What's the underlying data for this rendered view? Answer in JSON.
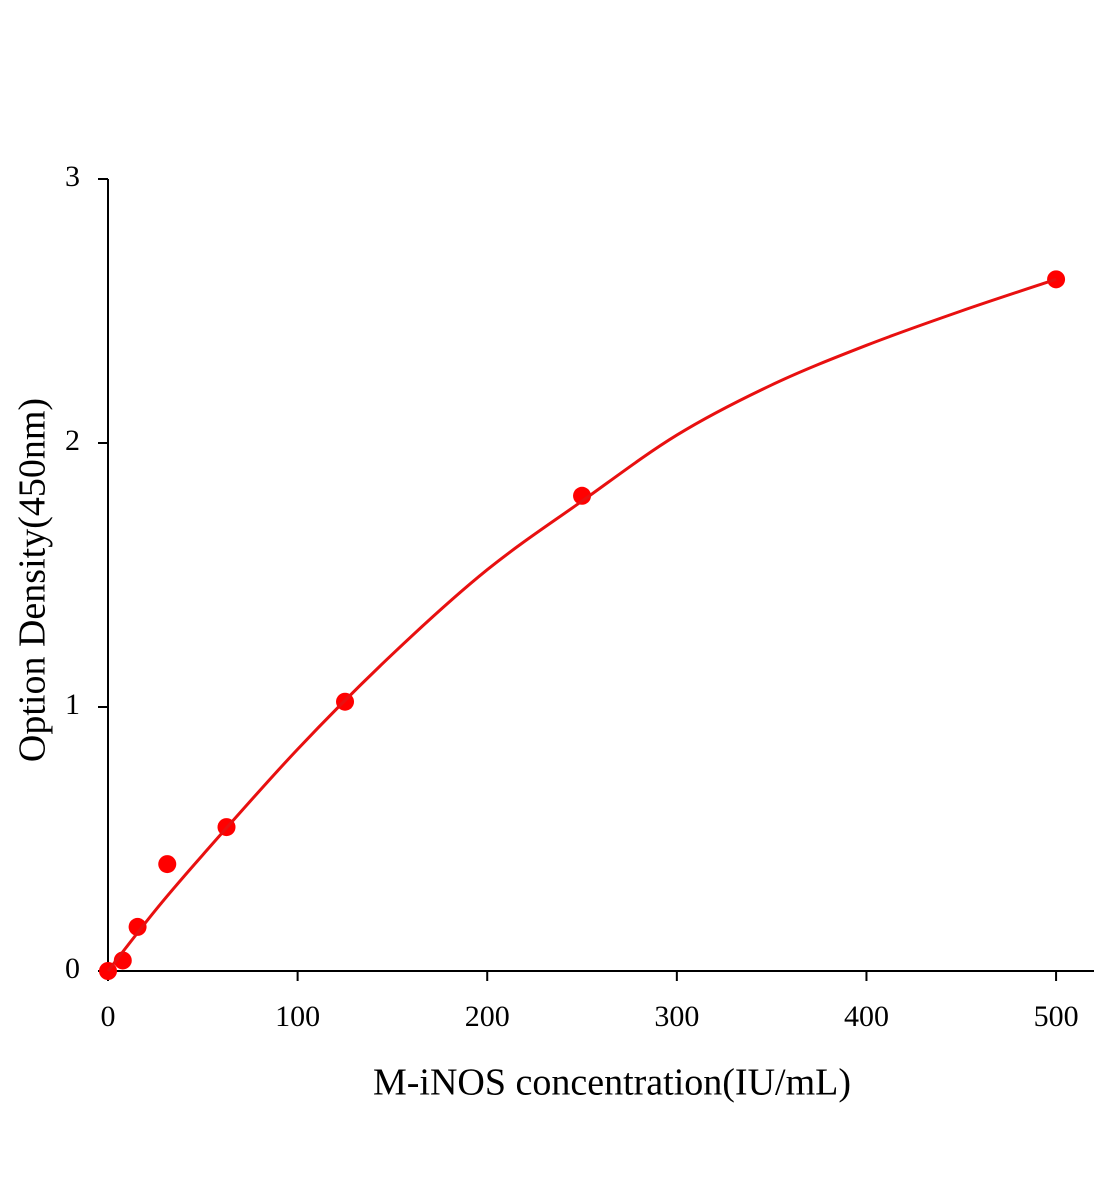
{
  "chart_data": {
    "type": "scatter",
    "x_label": "M-iNOS concentration(IU/mL)",
    "y_label": "Option Density(450nm)",
    "xlim": [
      0,
      520
    ],
    "ylim": [
      0,
      3
    ],
    "xticks": [
      0,
      100,
      200,
      300,
      400,
      500
    ],
    "yticks": [
      0,
      1,
      2,
      3
    ],
    "grid": false,
    "series": [
      {
        "type": "scatter",
        "color": "#ff0000",
        "x": [
          0,
          7.8,
          15.6,
          31.25,
          62.5,
          125,
          250,
          500
        ],
        "values": [
          0.0,
          0.04,
          0.167,
          0.405,
          0.545,
          1.02,
          1.8,
          2.62
        ]
      },
      {
        "type": "line",
        "color": "#e81010",
        "x": [
          0,
          25,
          50,
          100,
          150,
          200,
          250,
          300,
          350,
          400,
          450,
          500
        ],
        "values": [
          0.0,
          0.23,
          0.44,
          0.84,
          1.2,
          1.52,
          1.78,
          2.03,
          2.22,
          2.37,
          2.5,
          2.62
        ]
      }
    ]
  }
}
